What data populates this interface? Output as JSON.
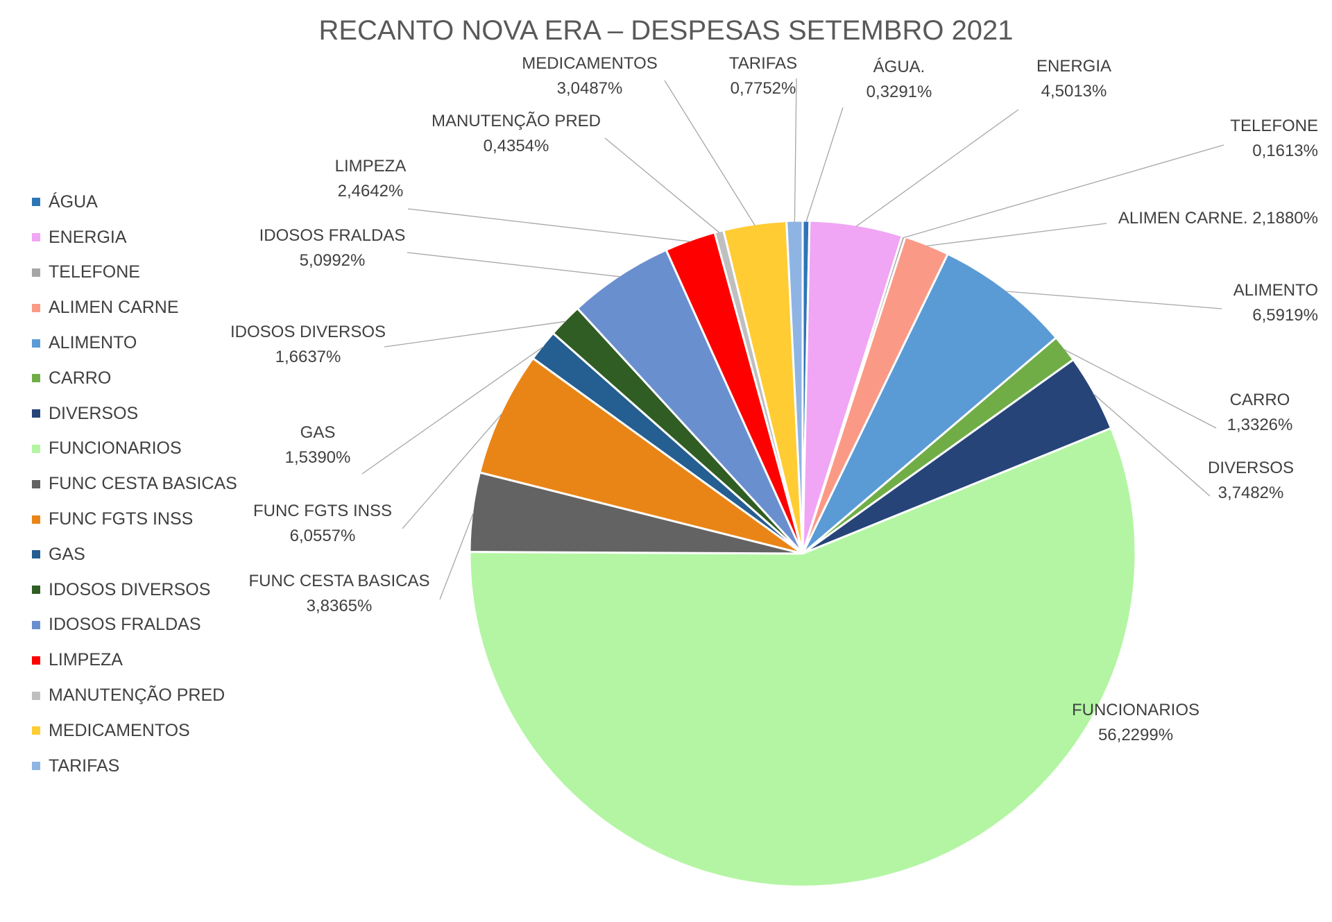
{
  "chart_data": {
    "type": "pie",
    "title": "RECANTO NOVA ERA – DESPESAS SETEMBRO 2021",
    "legend_position": "left",
    "slices": [
      {
        "name": "ÁGUA",
        "label_name": "ÁGUA.",
        "value": 0.3291,
        "value_label": "0,3291%",
        "color": "#2E75B6"
      },
      {
        "name": "ENERGIA",
        "label_name": "ENERGIA",
        "value": 4.5013,
        "value_label": "4,5013%",
        "color": "#F0A6F4"
      },
      {
        "name": "TELEFONE",
        "label_name": "TELEFONE",
        "value": 0.1613,
        "value_label": "0,1613%",
        "color": "#A6A6A6"
      },
      {
        "name": "ALIMEN CARNE",
        "label_name": "ALIMEN CARNE.",
        "value": 2.188,
        "value_label": "2,1880%",
        "color": "#FA9A86"
      },
      {
        "name": "ALIMENTO",
        "label_name": "ALIMENTO",
        "value": 6.5919,
        "value_label": "6,5919%",
        "color": "#5B9BD5"
      },
      {
        "name": "CARRO",
        "label_name": "CARRO",
        "value": 1.3326,
        "value_label": "1,3326%",
        "color": "#70AD47"
      },
      {
        "name": "DIVERSOS",
        "label_name": "DIVERSOS",
        "value": 3.7482,
        "value_label": "3,7482%",
        "color": "#264478"
      },
      {
        "name": "FUNCIONARIOS",
        "label_name": "FUNCIONARIOS",
        "value": 56.2299,
        "value_label": "56,2299%",
        "color": "#B3F5A3"
      },
      {
        "name": "FUNC CESTA BASICAS",
        "label_name": "FUNC CESTA BASICAS",
        "value": 3.8365,
        "value_label": "3,8365%",
        "color": "#636363"
      },
      {
        "name": "FUNC FGTS INSS",
        "label_name": "FUNC FGTS INSS",
        "value": 6.0557,
        "value_label": "6,0557%",
        "color": "#E98516"
      },
      {
        "name": "GAS",
        "label_name": "GAS",
        "value": 1.539,
        "value_label": "1,5390%",
        "color": "#255E91"
      },
      {
        "name": "IDOSOS DIVERSOS",
        "label_name": "IDOSOS DIVERSOS",
        "value": 1.6637,
        "value_label": "1,6637%",
        "color": "#2F5D23"
      },
      {
        "name": "IDOSOS FRALDAS",
        "label_name": "IDOSOS FRALDAS",
        "value": 5.0992,
        "value_label": "5,0992%",
        "color": "#6A8FCF"
      },
      {
        "name": "LIMPEZA",
        "label_name": "LIMPEZA",
        "value": 2.4642,
        "value_label": "2,4642%",
        "color": "#FF0000"
      },
      {
        "name": "MANUTENÇÃO PRED",
        "label_name": "MANUTENÇÃO PRED",
        "value": 0.4354,
        "value_label": "0,4354%",
        "color": "#BFBFBF"
      },
      {
        "name": "MEDICAMENTOS",
        "label_name": "MEDICAMENTOS",
        "value": 3.0487,
        "value_label": "3,0487%",
        "color": "#FFCC33"
      },
      {
        "name": "TARIFAS",
        "label_name": "TARIFAS",
        "value": 0.7752,
        "value_label": "0,7752%",
        "color": "#8EB4E3"
      }
    ]
  }
}
